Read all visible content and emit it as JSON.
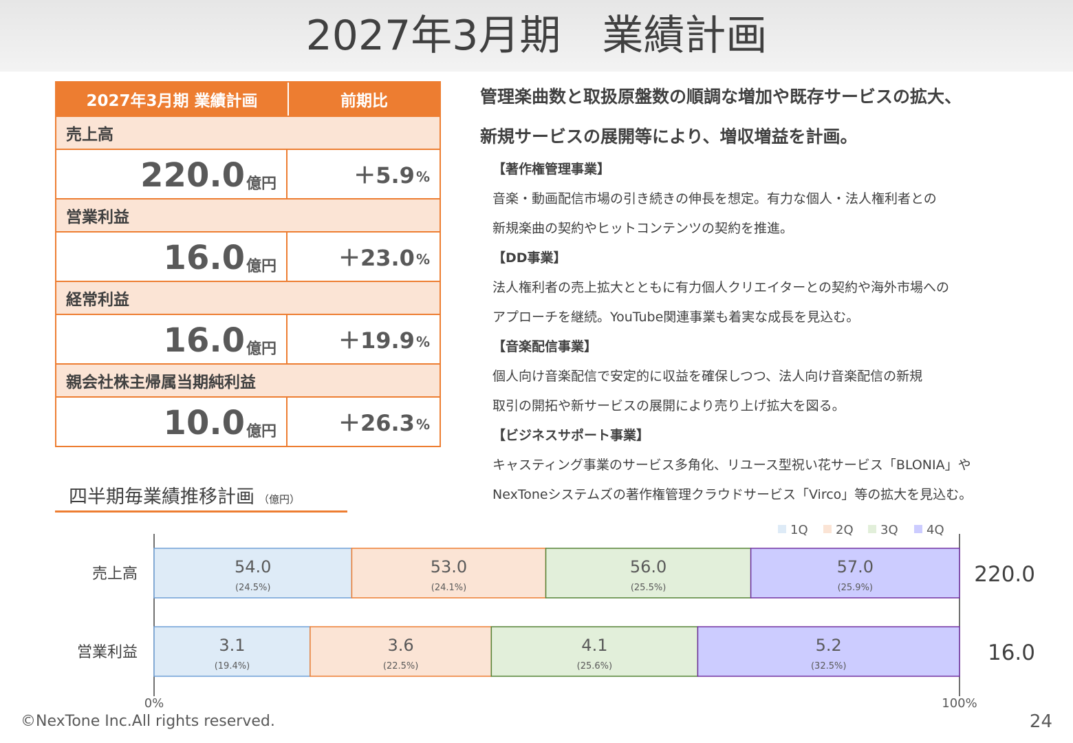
{
  "page": {
    "title": "2027年3月期　業績計画",
    "footer": "©NexTone Inc.All rights reserved.",
    "page_number": "24"
  },
  "plan_table": {
    "header_left": "2027年3月期 業績計画",
    "header_right": "前期比",
    "rows": [
      {
        "label": "売上高",
        "amount": "220.0",
        "unit": "億円",
        "yoy": "＋5.9",
        "yoy_unit": "%"
      },
      {
        "label": "営業利益",
        "amount": "16.0",
        "unit": "億円",
        "yoy": "＋23.0",
        "yoy_unit": "%"
      },
      {
        "label": "経常利益",
        "amount": "16.0",
        "unit": "億円",
        "yoy": "＋19.9",
        "yoy_unit": "%"
      },
      {
        "label": "親会社株主帰属当期純利益",
        "amount": "10.0",
        "unit": "億円",
        "yoy": "＋26.3",
        "yoy_unit": "%"
      }
    ]
  },
  "headline": {
    "line1": "管理楽曲数と取扱原盤数の順調な増加や既存サービスの拡大、",
    "line2": "新規サービスの展開等により、増収増益を計画。"
  },
  "businesses": [
    {
      "title": "【著作権管理事業】",
      "lines": [
        "音楽・動画配信市場の引き続きの伸長を想定。有力な個人・法人権利者との",
        "新規楽曲の契約やヒットコンテンツの契約を推進。"
      ]
    },
    {
      "title": "【DD事業】",
      "lines": [
        "法人権利者の売上拡大とともに有力個人クリエイターとの契約や海外市場への",
        "アプローチを継続。YouTube関連事業も着実な成長を見込む。"
      ]
    },
    {
      "title": "【音楽配信事業】",
      "lines": [
        "個人向け音楽配信で安定的に収益を確保しつつ、法人向け音楽配信の新規",
        "取引の開拓や新サービスの展開により売り上げ拡大を図る。"
      ]
    },
    {
      "title": "【ビジネスサポート事業】",
      "lines": [
        "キャスティング事業のサービス多角化、リユース型祝い花サービス「BLONIA」や",
        "NexToneシステムズの著作権管理クラウドサービス「Virco」等の拡大を見込む。"
      ]
    }
  ],
  "chart_section": {
    "title": "四半期毎業績推移計画",
    "unit": "（億円）"
  },
  "chart_data": {
    "type": "bar",
    "orientation": "horizontal",
    "stacked": "100%",
    "categories": [
      "売上高",
      "営業利益"
    ],
    "series": [
      {
        "name": "1Q",
        "values": [
          54.0,
          3.1
        ],
        "share_labels": [
          "(24.5%)",
          "(19.4%)"
        ],
        "fill": "#deebf7",
        "stroke": "#6f9fd6"
      },
      {
        "name": "2Q",
        "values": [
          53.0,
          3.6
        ],
        "share_labels": [
          "(24.1%)",
          "(22.5%)"
        ],
        "fill": "#fbe4d5",
        "stroke": "#ed7d31"
      },
      {
        "name": "3Q",
        "values": [
          56.0,
          4.1
        ],
        "share_labels": [
          "(25.5%)",
          "(25.6%)"
        ],
        "fill": "#e2efda",
        "stroke": "#548235"
      },
      {
        "name": "4Q",
        "values": [
          57.0,
          5.2
        ],
        "share_labels": [
          "(25.9%)",
          "(32.5%)"
        ],
        "fill": "#ccccff",
        "stroke": "#7030a0"
      }
    ],
    "totals": [
      "220.0",
      "16.0"
    ],
    "x_tick_labels": [
      "0%",
      "100%"
    ],
    "xlim": [
      0,
      100
    ],
    "legend_position": "top-right",
    "grid": false
  }
}
